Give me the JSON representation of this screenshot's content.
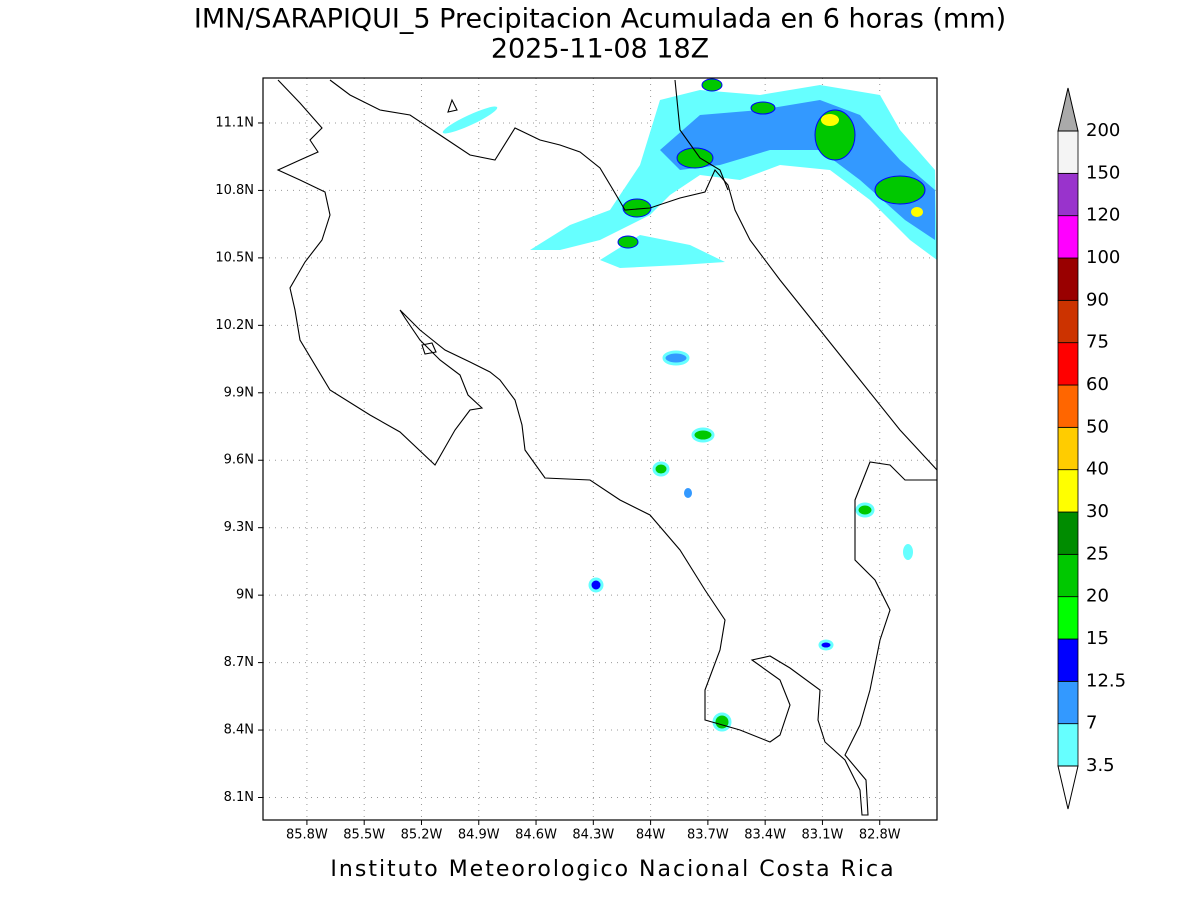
{
  "map": {
    "title": "IMN/SARAPIQUI_5 Precipitacion Acumulada en 6 horas (mm)",
    "subtitle": "2025-11-08 18Z",
    "footer": "Instituto Meteorologico Nacional Costa Rica",
    "xlim": [
      -86.03,
      -82.5
    ],
    "ylim": [
      8.0,
      11.3
    ],
    "xticks": [
      {
        "value": -85.8,
        "label": "85.8W"
      },
      {
        "value": -85.5,
        "label": "85.5W"
      },
      {
        "value": -85.2,
        "label": "85.2W"
      },
      {
        "value": -84.9,
        "label": "84.9W"
      },
      {
        "value": -84.6,
        "label": "84.6W"
      },
      {
        "value": -84.3,
        "label": "84.3W"
      },
      {
        "value": -84.0,
        "label": "84W"
      },
      {
        "value": -83.7,
        "label": "83.7W"
      },
      {
        "value": -83.4,
        "label": "83.4W"
      },
      {
        "value": -83.1,
        "label": "83.1W"
      },
      {
        "value": -82.8,
        "label": "82.8W"
      }
    ],
    "yticks": [
      {
        "value": 11.1,
        "label": "11.1N"
      },
      {
        "value": 10.8,
        "label": "10.8N"
      },
      {
        "value": 10.5,
        "label": "10.5N"
      },
      {
        "value": 10.2,
        "label": "10.2N"
      },
      {
        "value": 9.9,
        "label": "9.9N"
      },
      {
        "value": 9.6,
        "label": "9.6N"
      },
      {
        "value": 9.3,
        "label": "9.3N"
      },
      {
        "value": 9.0,
        "label": "9N"
      },
      {
        "value": 8.7,
        "label": "8.7N"
      },
      {
        "value": 8.4,
        "label": "8.4N"
      },
      {
        "value": 8.1,
        "label": "8.1N"
      }
    ],
    "grid": true,
    "colorbar": {
      "levels": [
        {
          "value": 3.5,
          "label": "3.5"
        },
        7,
        {
          "value": 12.5,
          "label": "12.5"
        },
        15,
        20,
        25,
        30,
        40,
        50,
        60,
        75,
        90,
        100,
        120,
        150,
        200
      ],
      "colors": [
        "#66ffff",
        "#3399ff",
        "#0000ff",
        "#00ff00",
        "#00c800",
        "#008c00",
        "#ffff00",
        "#ffcc00",
        "#ff6600",
        "#ff0000",
        "#cc3300",
        "#990000",
        "#ff00ff",
        "#9933cc",
        "#f4f4f4"
      ],
      "over_color": "#aaaaaa",
      "under_color": "#ffffff"
    }
  }
}
